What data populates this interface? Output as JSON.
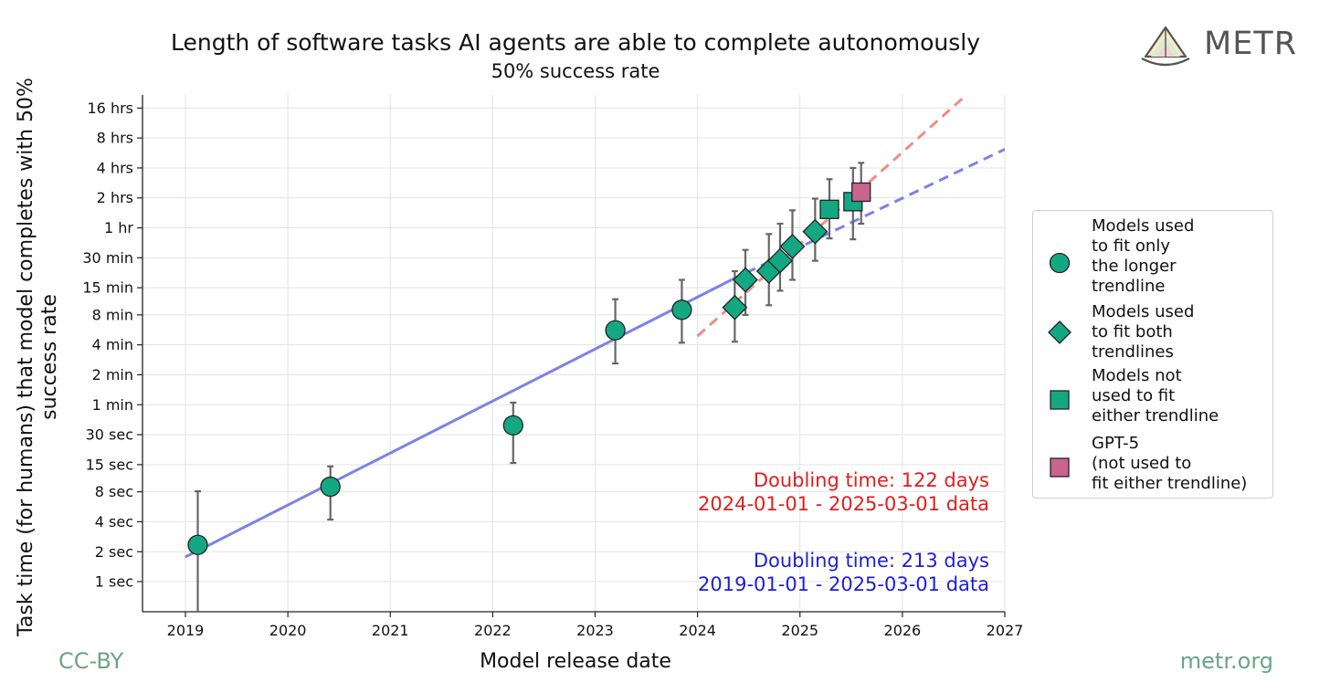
{
  "title": "Length of software tasks AI agents are able to complete autonomously",
  "subtitle": "50% success rate",
  "brand": "METR",
  "footer_left": "CC-BY",
  "footer_right": "metr.org",
  "chart_data": {
    "type": "scatter",
    "title": "Length of software tasks AI agents are able to complete autonomously",
    "subtitle": "50% success rate",
    "xlabel": "Model release date",
    "ylabel": "Task time (for humans) that model completes with 50% success rate",
    "y_scale": "log2",
    "y_unit": "minutes",
    "xlim": [
      "2018-08-01",
      "2027-01-01"
    ],
    "ylim": [
      0.0083,
      1300
    ],
    "x_ticks": [
      "2019",
      "2020",
      "2021",
      "2022",
      "2023",
      "2024",
      "2025",
      "2026",
      "2027"
    ],
    "y_ticks": [
      {
        "value": 0.0167,
        "label": "1 sec"
      },
      {
        "value": 0.0333,
        "label": "2 sec"
      },
      {
        "value": 0.0667,
        "label": "4 sec"
      },
      {
        "value": 0.1333,
        "label": "8 sec"
      },
      {
        "value": 0.25,
        "label": "15 sec"
      },
      {
        "value": 0.5,
        "label": "30 sec"
      },
      {
        "value": 1,
        "label": "1 min"
      },
      {
        "value": 2,
        "label": "2 min"
      },
      {
        "value": 4,
        "label": "4 min"
      },
      {
        "value": 8,
        "label": "8 min"
      },
      {
        "value": 15,
        "label": "15 min"
      },
      {
        "value": 30,
        "label": "30 min"
      },
      {
        "value": 60,
        "label": "1 hr"
      },
      {
        "value": 120,
        "label": "2 hrs"
      },
      {
        "value": 240,
        "label": "4 hrs"
      },
      {
        "value": 480,
        "label": "8 hrs"
      },
      {
        "value": 960,
        "label": "16 hrs"
      }
    ],
    "grid": true,
    "legend_position": "right",
    "series": [
      {
        "name": "Models used to fit only the longer trendline",
        "marker": "circle",
        "color": "#13a882",
        "points": [
          {
            "x": "2019-02-14",
            "y": 0.039,
            "lo": 0.008,
            "hi": 0.135
          },
          {
            "x": "2020-06-01",
            "y": 0.15,
            "lo": 0.07,
            "hi": 0.24
          },
          {
            "x": "2022-03-15",
            "y": 0.62,
            "lo": 0.26,
            "hi": 1.05
          },
          {
            "x": "2023-03-14",
            "y": 5.6,
            "lo": 2.6,
            "hi": 11.5
          },
          {
            "x": "2023-11-06",
            "y": 9,
            "lo": 4.2,
            "hi": 18
          }
        ]
      },
      {
        "name": "Models used to fit both trendlines",
        "marker": "diamond",
        "color": "#13a882",
        "points": [
          {
            "x": "2024-05-13",
            "y": 9.5,
            "lo": 4.3,
            "hi": 22
          },
          {
            "x": "2024-06-20",
            "y": 18,
            "lo": 8,
            "hi": 36
          },
          {
            "x": "2024-09-12",
            "y": 22,
            "lo": 10,
            "hi": 52
          },
          {
            "x": "2024-10-22",
            "y": 28,
            "lo": 14,
            "hi": 66
          },
          {
            "x": "2024-12-05",
            "y": 39,
            "lo": 18,
            "hi": 90
          },
          {
            "x": "2025-02-24",
            "y": 55,
            "lo": 28,
            "hi": 118
          }
        ]
      },
      {
        "name": "Models not used to fit either trendline",
        "marker": "square",
        "color": "#13a882",
        "points": [
          {
            "x": "2025-04-16",
            "y": 92,
            "lo": 47,
            "hi": 185
          },
          {
            "x": "2025-07-09",
            "y": 110,
            "lo": 46,
            "hi": 240
          }
        ]
      },
      {
        "name": "GPT-5 (not used to fit either trendline)",
        "marker": "square",
        "color": "#c9648f",
        "points": [
          {
            "x": "2025-08-07",
            "y": 137,
            "lo": 66,
            "hi": 270
          }
        ]
      }
    ],
    "trendlines": [
      {
        "color": "#7c82e6",
        "style": "solid",
        "x": [
          "2019-02-14",
          "2024-05-01"
        ],
        "y": [
          0.034,
          18
        ]
      },
      {
        "color": "#7c82e6",
        "style": "dashed",
        "x": [
          "2018-12-31",
          "2019-02-14"
        ],
        "y": [
          0.0295,
          0.034
        ]
      },
      {
        "color": "#7c82e6",
        "style": "dashed",
        "x": [
          "2024-05-01",
          "2027-01-01"
        ],
        "y": [
          18,
          370
        ]
      },
      {
        "color": "#f08c86",
        "style": "dashed",
        "x": [
          "2024-01-01",
          "2026-08-10"
        ],
        "y": [
          4.9,
          1250
        ]
      }
    ],
    "annotations": [
      {
        "line1": "Doubling time: 122 days",
        "line2": "2024-01-01 - 2025-03-01 data",
        "color": "#dd1f1f"
      },
      {
        "line1": "Doubling time: 213 days",
        "line2": "2019-01-01 - 2025-03-01 data",
        "color": "#1d1fd6"
      }
    ]
  },
  "legend": [
    {
      "marker": "circle",
      "color": "#13a882",
      "label": "Models used\nto fit only\nthe longer\ntrendline"
    },
    {
      "marker": "diamond",
      "color": "#13a882",
      "label": "Models used\nto fit both\ntrendlines"
    },
    {
      "marker": "square",
      "color": "#13a882",
      "label": "Models not\nused to fit\neither trendline"
    },
    {
      "marker": "square",
      "color": "#c9648f",
      "label": "GPT-5\n(not used to\nfit either trendline)"
    }
  ]
}
